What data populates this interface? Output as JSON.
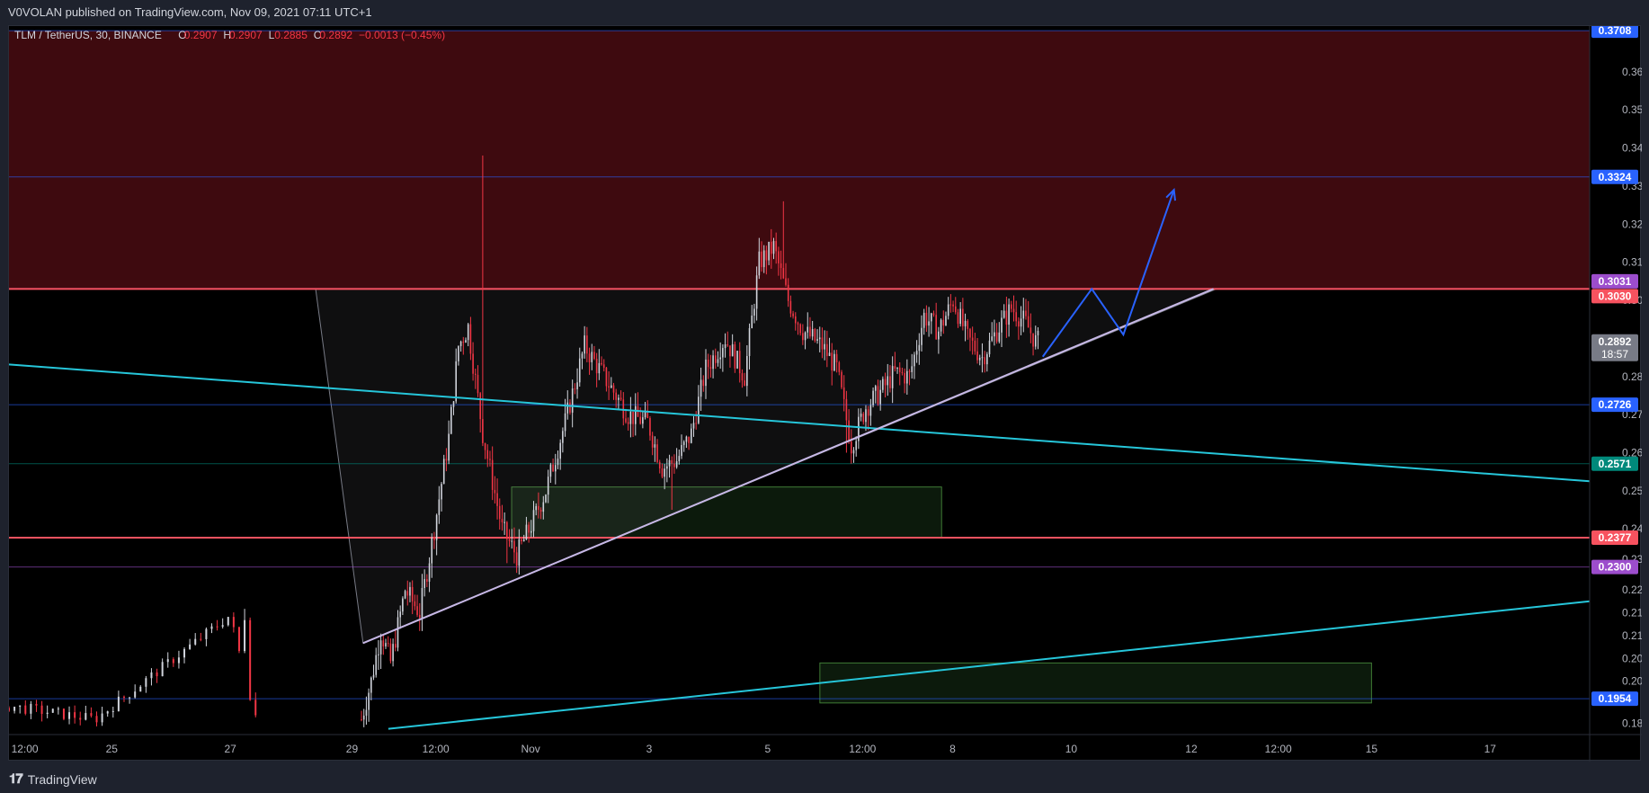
{
  "header": {
    "published": "V0VOLAN published on TradingView.com, Nov 09, 2021 07:11 UTC+1"
  },
  "legend": {
    "symbol": "TLM / TetherUS, 30, BINANCE",
    "o_label": "O",
    "o": "0.2907",
    "h_label": "H",
    "h": "0.2907",
    "l_label": "L",
    "l": "0.2885",
    "c_label": "C",
    "c": "0.2892",
    "change": "−0.0013 (−0.45%)"
  },
  "footer": {
    "brand": "TradingView",
    "logo_icon": "tradingview-logo-icon"
  },
  "colors": {
    "up": "#d1d4dc",
    "down": "#f23645",
    "resistance_zone": "#3e0a0f",
    "support_box": "#0c1a0c",
    "cyan_trend": "#26c6da",
    "lavender_trend": "#c7b8e6",
    "projection": "#2962ff",
    "red_line": "#f7525f"
  },
  "chart_data": {
    "type": "candlestick",
    "title": "",
    "x_axis": {
      "tick_labels": [
        "12:00",
        "25",
        "27",
        "29",
        "12:00",
        "Nov",
        "3",
        "5",
        "12:00",
        "8",
        "10",
        "12",
        "12:00",
        "15",
        "17"
      ]
    },
    "y_axis": {
      "range": [
        0.186,
        0.372
      ],
      "tick_labels": [
        "0.3600",
        "0.3500",
        "0.3400",
        "0.3300",
        "0.3200",
        "0.3100",
        "0.3000",
        "0.2800",
        "0.2700",
        "0.2600",
        "0.2500",
        "0.2400",
        "0.2320",
        "0.2240",
        "0.2180",
        "0.2120",
        "0.2060",
        "0.2000",
        "0.1890"
      ]
    },
    "price_levels": [
      {
        "value": "0.3708",
        "color": "#2962ff"
      },
      {
        "value": "0.3324",
        "color": "#2962ff"
      },
      {
        "value": "0.3031",
        "color": "#9c4dcc"
      },
      {
        "value": "0.3030",
        "color": "#f7525f"
      },
      {
        "value": "0.2726",
        "color": "#2962ff"
      },
      {
        "value": "0.2571",
        "color": "#00897b"
      },
      {
        "value": "0.2377",
        "color": "#f7525f"
      },
      {
        "value": "0.2300",
        "color": "#9c4dcc"
      },
      {
        "value": "0.1954",
        "color": "#2962ff"
      }
    ],
    "last_price": {
      "value": "0.2892",
      "countdown": "18:57"
    },
    "zones": [
      {
        "kind": "resistance",
        "top": 0.3708,
        "bottom": 0.303
      },
      {
        "kind": "support",
        "top": 0.251,
        "bottom": 0.2377
      },
      {
        "kind": "support",
        "top": 0.2048,
        "bottom": 0.1943
      }
    ],
    "candles": {
      "segment1": {
        "count": 46,
        "start": 0.193,
        "end": 0.192,
        "high": 0.219
      },
      "waypoints": [
        [
          0,
          0.19
        ],
        [
          4,
          0.2
        ],
        [
          8,
          0.213
        ],
        [
          12,
          0.205
        ],
        [
          18,
          0.224
        ],
        [
          24,
          0.218
        ],
        [
          30,
          0.24
        ],
        [
          36,
          0.264
        ],
        [
          40,
          0.288
        ],
        [
          44,
          0.293
        ],
        [
          50,
          0.265
        ],
        [
          58,
          0.24
        ],
        [
          64,
          0.233
        ],
        [
          70,
          0.241
        ],
        [
          76,
          0.25
        ],
        [
          84,
          0.268
        ],
        [
          92,
          0.288
        ],
        [
          100,
          0.28
        ],
        [
          110,
          0.27
        ],
        [
          118,
          0.268
        ],
        [
          124,
          0.256
        ],
        [
          130,
          0.258
        ],
        [
          136,
          0.265
        ],
        [
          142,
          0.282
        ],
        [
          150,
          0.29
        ],
        [
          158,
          0.28
        ],
        [
          164,
          0.31
        ],
        [
          170,
          0.314
        ],
        [
          176,
          0.3
        ],
        [
          182,
          0.292
        ],
        [
          190,
          0.288
        ],
        [
          196,
          0.282
        ],
        [
          202,
          0.262
        ],
        [
          208,
          0.272
        ],
        [
          214,
          0.276
        ],
        [
          220,
          0.281
        ],
        [
          226,
          0.28
        ],
        [
          232,
          0.296
        ],
        [
          238,
          0.292
        ],
        [
          244,
          0.3
        ],
        [
          250,
          0.29
        ],
        [
          256,
          0.285
        ],
        [
          262,
          0.292
        ],
        [
          268,
          0.298
        ],
        [
          274,
          0.294
        ],
        [
          278,
          0.2892
        ]
      ],
      "extreme_highs": [
        [
          50,
          0.338
        ],
        [
          174,
          0.326
        ]
      ],
      "extreme_lows": [
        [
          60,
          0.231
        ],
        [
          65,
          0.228
        ],
        [
          128,
          0.245
        ],
        [
          200,
          0.26
        ]
      ]
    },
    "lines": [
      {
        "kind": "cyan_trend_down",
        "from": [
          -0.5,
          0.2985
        ],
        "to": [
          1.0,
          0.2525
        ]
      },
      {
        "kind": "cyan_trend_up",
        "from": [
          0.24,
          0.1875
        ],
        "to": [
          1.0,
          0.221
        ]
      },
      {
        "kind": "ascending_support",
        "from": [
          0.224,
          0.21
        ],
        "to": [
          0.762,
          0.303
        ]
      },
      {
        "kind": "triangle_top",
        "from": [
          0.194,
          0.303
        ],
        "to": [
          0.764,
          0.303
        ]
      }
    ],
    "projection": [
      [
        0.654,
        0.2852
      ],
      [
        0.685,
        0.303
      ],
      [
        0.705,
        0.291
      ],
      [
        0.737,
        0.329
      ]
    ]
  }
}
